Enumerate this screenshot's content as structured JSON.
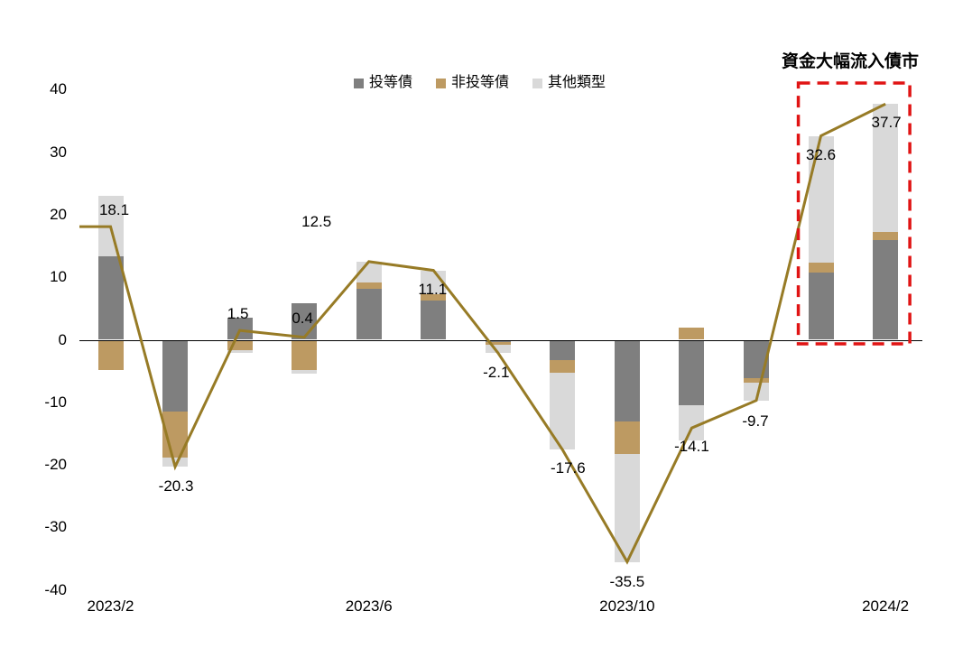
{
  "chart_data": {
    "type": "bar",
    "subtype": "stacked-bar-with-line",
    "title": "",
    "xlabel": "",
    "ylabel": "",
    "ylim": [
      -40,
      40
    ],
    "grid": false,
    "legend_position": "top",
    "categories": [
      "2023/2",
      "2023/3",
      "2023/4",
      "2023/5",
      "2023/6",
      "2023/7",
      "2023/8",
      "2023/9",
      "2023/10",
      "2023/11",
      "2023/12",
      "2024/1",
      "2024/2"
    ],
    "series": [
      {
        "name": "投等債",
        "type": "bar",
        "color": "#7F7F7F",
        "values": [
          13.3,
          -11.5,
          3.6,
          5.8,
          8.1,
          6.3,
          -0.4,
          -3.2,
          -13.0,
          -10.4,
          -6.2,
          10.8,
          15.9
        ]
      },
      {
        "name": "非投等債",
        "type": "bar",
        "color": "#BD9A62",
        "values": [
          -4.9,
          -7.4,
          -1.7,
          -4.8,
          1.0,
          1.0,
          -0.4,
          -2.0,
          -5.3,
          2.0,
          -0.6,
          1.6,
          1.3
        ]
      },
      {
        "name": "其他類型",
        "type": "bar",
        "color": "#D9D9D9",
        "values": [
          9.7,
          -1.4,
          -0.4,
          -0.6,
          3.4,
          3.8,
          -1.3,
          -12.4,
          -17.2,
          -5.7,
          -2.9,
          20.2,
          20.5
        ]
      }
    ],
    "line": {
      "color": "#977B26",
      "values": [
        18.1,
        -20.3,
        1.5,
        0.4,
        12.5,
        11.1,
        -2.1,
        -17.6,
        -35.5,
        -14.1,
        -9.7,
        32.6,
        37.7
      ]
    },
    "data_labels": [
      "18.1",
      "-20.3",
      "1.5",
      "0.4",
      "12.5",
      "11.1",
      "-2.1",
      "-17.6",
      "-35.5",
      "-14.1",
      "-9.7",
      "32.6",
      "37.7"
    ],
    "yticks": [
      "40",
      "30",
      "20",
      "10",
      "0",
      "-10",
      "-20",
      "-30",
      "-40"
    ],
    "xtick_labels": [
      "2023/2",
      "2023/6",
      "2023/10",
      "2024/2"
    ],
    "xtick_indices": [
      0,
      4,
      8,
      12
    ],
    "annotation": {
      "text": "資金大幅流入債市",
      "box_color": "#E01414",
      "box_categories": [
        "2024/1",
        "2024/2"
      ]
    }
  },
  "legend": {
    "items": [
      {
        "label": "投等債",
        "color": "#7F7F7F"
      },
      {
        "label": "非投等債",
        "color": "#BD9A62"
      },
      {
        "label": "其他類型",
        "color": "#D9D9D9"
      }
    ]
  }
}
